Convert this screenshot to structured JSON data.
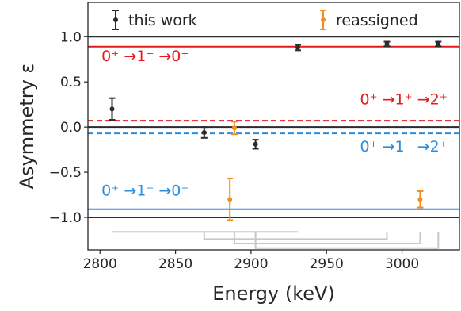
{
  "chart_data": {
    "type": "scatter",
    "xlabel": "Energy (keV)",
    "ylabel": "Asymmetry ε",
    "xlim": [
      2792,
      3038
    ],
    "ylim": [
      -1.36,
      1.38
    ],
    "xticks": [
      2800,
      2850,
      2900,
      2950,
      3000
    ],
    "yticks": [
      -1.0,
      -0.5,
      0.0,
      0.5,
      1.0
    ],
    "ytick_labels": [
      "−1.0",
      "−0.5",
      "0.0",
      "0.5",
      "1.0"
    ],
    "grid": false,
    "legend": {
      "placement": "top"
    },
    "colors": {
      "this_work": "#2b2b2b",
      "reassigned": "#f28e1c",
      "red": "#e41a1c",
      "blue": "#2a8ee0",
      "ref": "#2b2b2b",
      "bracket": "#c8c8c8"
    },
    "series": [
      {
        "name": "this work",
        "key": "this_work",
        "points": [
          {
            "x": 2808,
            "y": 0.2,
            "err": 0.12
          },
          {
            "x": 2869,
            "y": -0.06,
            "err": 0.06
          },
          {
            "x": 2903,
            "y": -0.19,
            "err": 0.05
          },
          {
            "x": 2931,
            "y": 0.88,
            "err": 0.03
          },
          {
            "x": 2990,
            "y": 0.92,
            "err": 0.025
          },
          {
            "x": 3024,
            "y": 0.92,
            "err": 0.025
          }
        ]
      },
      {
        "name": "reassigned",
        "key": "reassigned",
        "points": [
          {
            "x": 2886,
            "y": -0.8,
            "err": 0.23
          },
          {
            "x": 2889,
            "y": -0.01,
            "err": 0.07
          },
          {
            "x": 3012,
            "y": -0.8,
            "err": 0.09
          }
        ]
      }
    ],
    "reference_lines": [
      {
        "y": 1.0,
        "color": "ref",
        "style": "solid"
      },
      {
        "y": 0.0,
        "color": "ref",
        "style": "solid"
      },
      {
        "y": -1.0,
        "color": "ref",
        "style": "solid"
      },
      {
        "y": 0.89,
        "color": "red",
        "style": "solid"
      },
      {
        "y": 0.07,
        "color": "red",
        "style": "dashed"
      },
      {
        "y": -0.07,
        "color": "blue",
        "style": "dashed"
      },
      {
        "y": -0.91,
        "color": "blue",
        "style": "solid"
      }
    ],
    "annotations": [
      {
        "text": "0⁺ →1⁺ →0⁺",
        "color": "red",
        "x": 2801,
        "y": 0.73,
        "anchor": "start"
      },
      {
        "text": "0⁺ →1⁺ →2⁺",
        "color": "red",
        "x": 3030,
        "y": 0.25,
        "anchor": "end"
      },
      {
        "text": "0⁺ →1⁻ →2⁺",
        "color": "blue",
        "x": 3030,
        "y": -0.27,
        "anchor": "end"
      },
      {
        "text": "0⁺ →1⁻ →0⁺",
        "color": "blue",
        "x": 2801,
        "y": -0.76,
        "anchor": "start"
      }
    ],
    "brackets": [
      {
        "x1": 2808,
        "x2": 2931,
        "y": -1.16
      },
      {
        "x1": 2869,
        "x2": 2990,
        "y": -1.24
      },
      {
        "x1": 2889,
        "x2": 3012,
        "y": -1.29
      },
      {
        "x1": 2903,
        "x2": 3024,
        "y": -1.34
      }
    ]
  }
}
